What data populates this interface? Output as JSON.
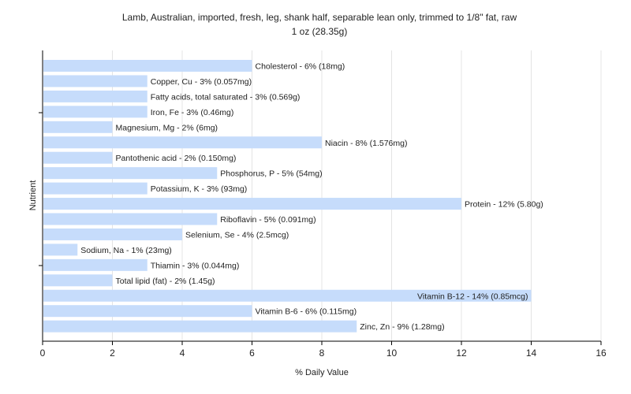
{
  "chart_data": {
    "type": "bar",
    "orientation": "horizontal",
    "title": "Lamb, Australian, imported, fresh, leg, shank half, separable lean only, trimmed to 1/8\" fat, raw",
    "subtitle": "1 oz (28.35g)",
    "xlabel": "% Daily Value",
    "ylabel": "Nutrient",
    "xlim": [
      0,
      16
    ],
    "xticks": [
      "0",
      "2",
      "4",
      "6",
      "8",
      "10",
      "12",
      "14",
      "16"
    ],
    "grid": true,
    "bar_color": "#c6dcfb",
    "categories": [
      "Cholesterol",
      "Copper, Cu",
      "Fatty acids, total saturated",
      "Iron, Fe",
      "Magnesium, Mg",
      "Niacin",
      "Pantothenic acid",
      "Phosphorus, P",
      "Potassium, K",
      "Protein",
      "Riboflavin",
      "Selenium, Se",
      "Sodium, Na",
      "Thiamin",
      "Total lipid (fat)",
      "Vitamin B-12",
      "Vitamin B-6",
      "Zinc, Zn"
    ],
    "values": [
      6,
      3,
      3,
      3,
      2,
      8,
      2,
      5,
      3,
      12,
      5,
      4,
      1,
      3,
      2,
      14,
      6,
      9
    ],
    "labels": [
      "Cholesterol - 6% (18mg)",
      "Copper, Cu - 3% (0.057mg)",
      "Fatty acids, total saturated - 3% (0.569g)",
      "Iron, Fe - 3% (0.46mg)",
      "Magnesium, Mg - 2% (6mg)",
      "Niacin - 8% (1.576mg)",
      "Pantothenic acid - 2% (0.150mg)",
      "Phosphorus, P - 5% (54mg)",
      "Potassium, K - 3% (93mg)",
      "Protein - 12% (5.80g)",
      "Riboflavin - 5% (0.091mg)",
      "Selenium, Se - 4% (2.5mcg)",
      "Sodium, Na - 1% (23mg)",
      "Thiamin - 3% (0.044mg)",
      "Total lipid (fat) - 2% (1.45g)",
      "Vitamin B-12 - 14% (0.85mcg)",
      "Vitamin B-6 - 6% (0.115mg)",
      "Zinc, Zn - 9% (1.28mg)"
    ]
  }
}
